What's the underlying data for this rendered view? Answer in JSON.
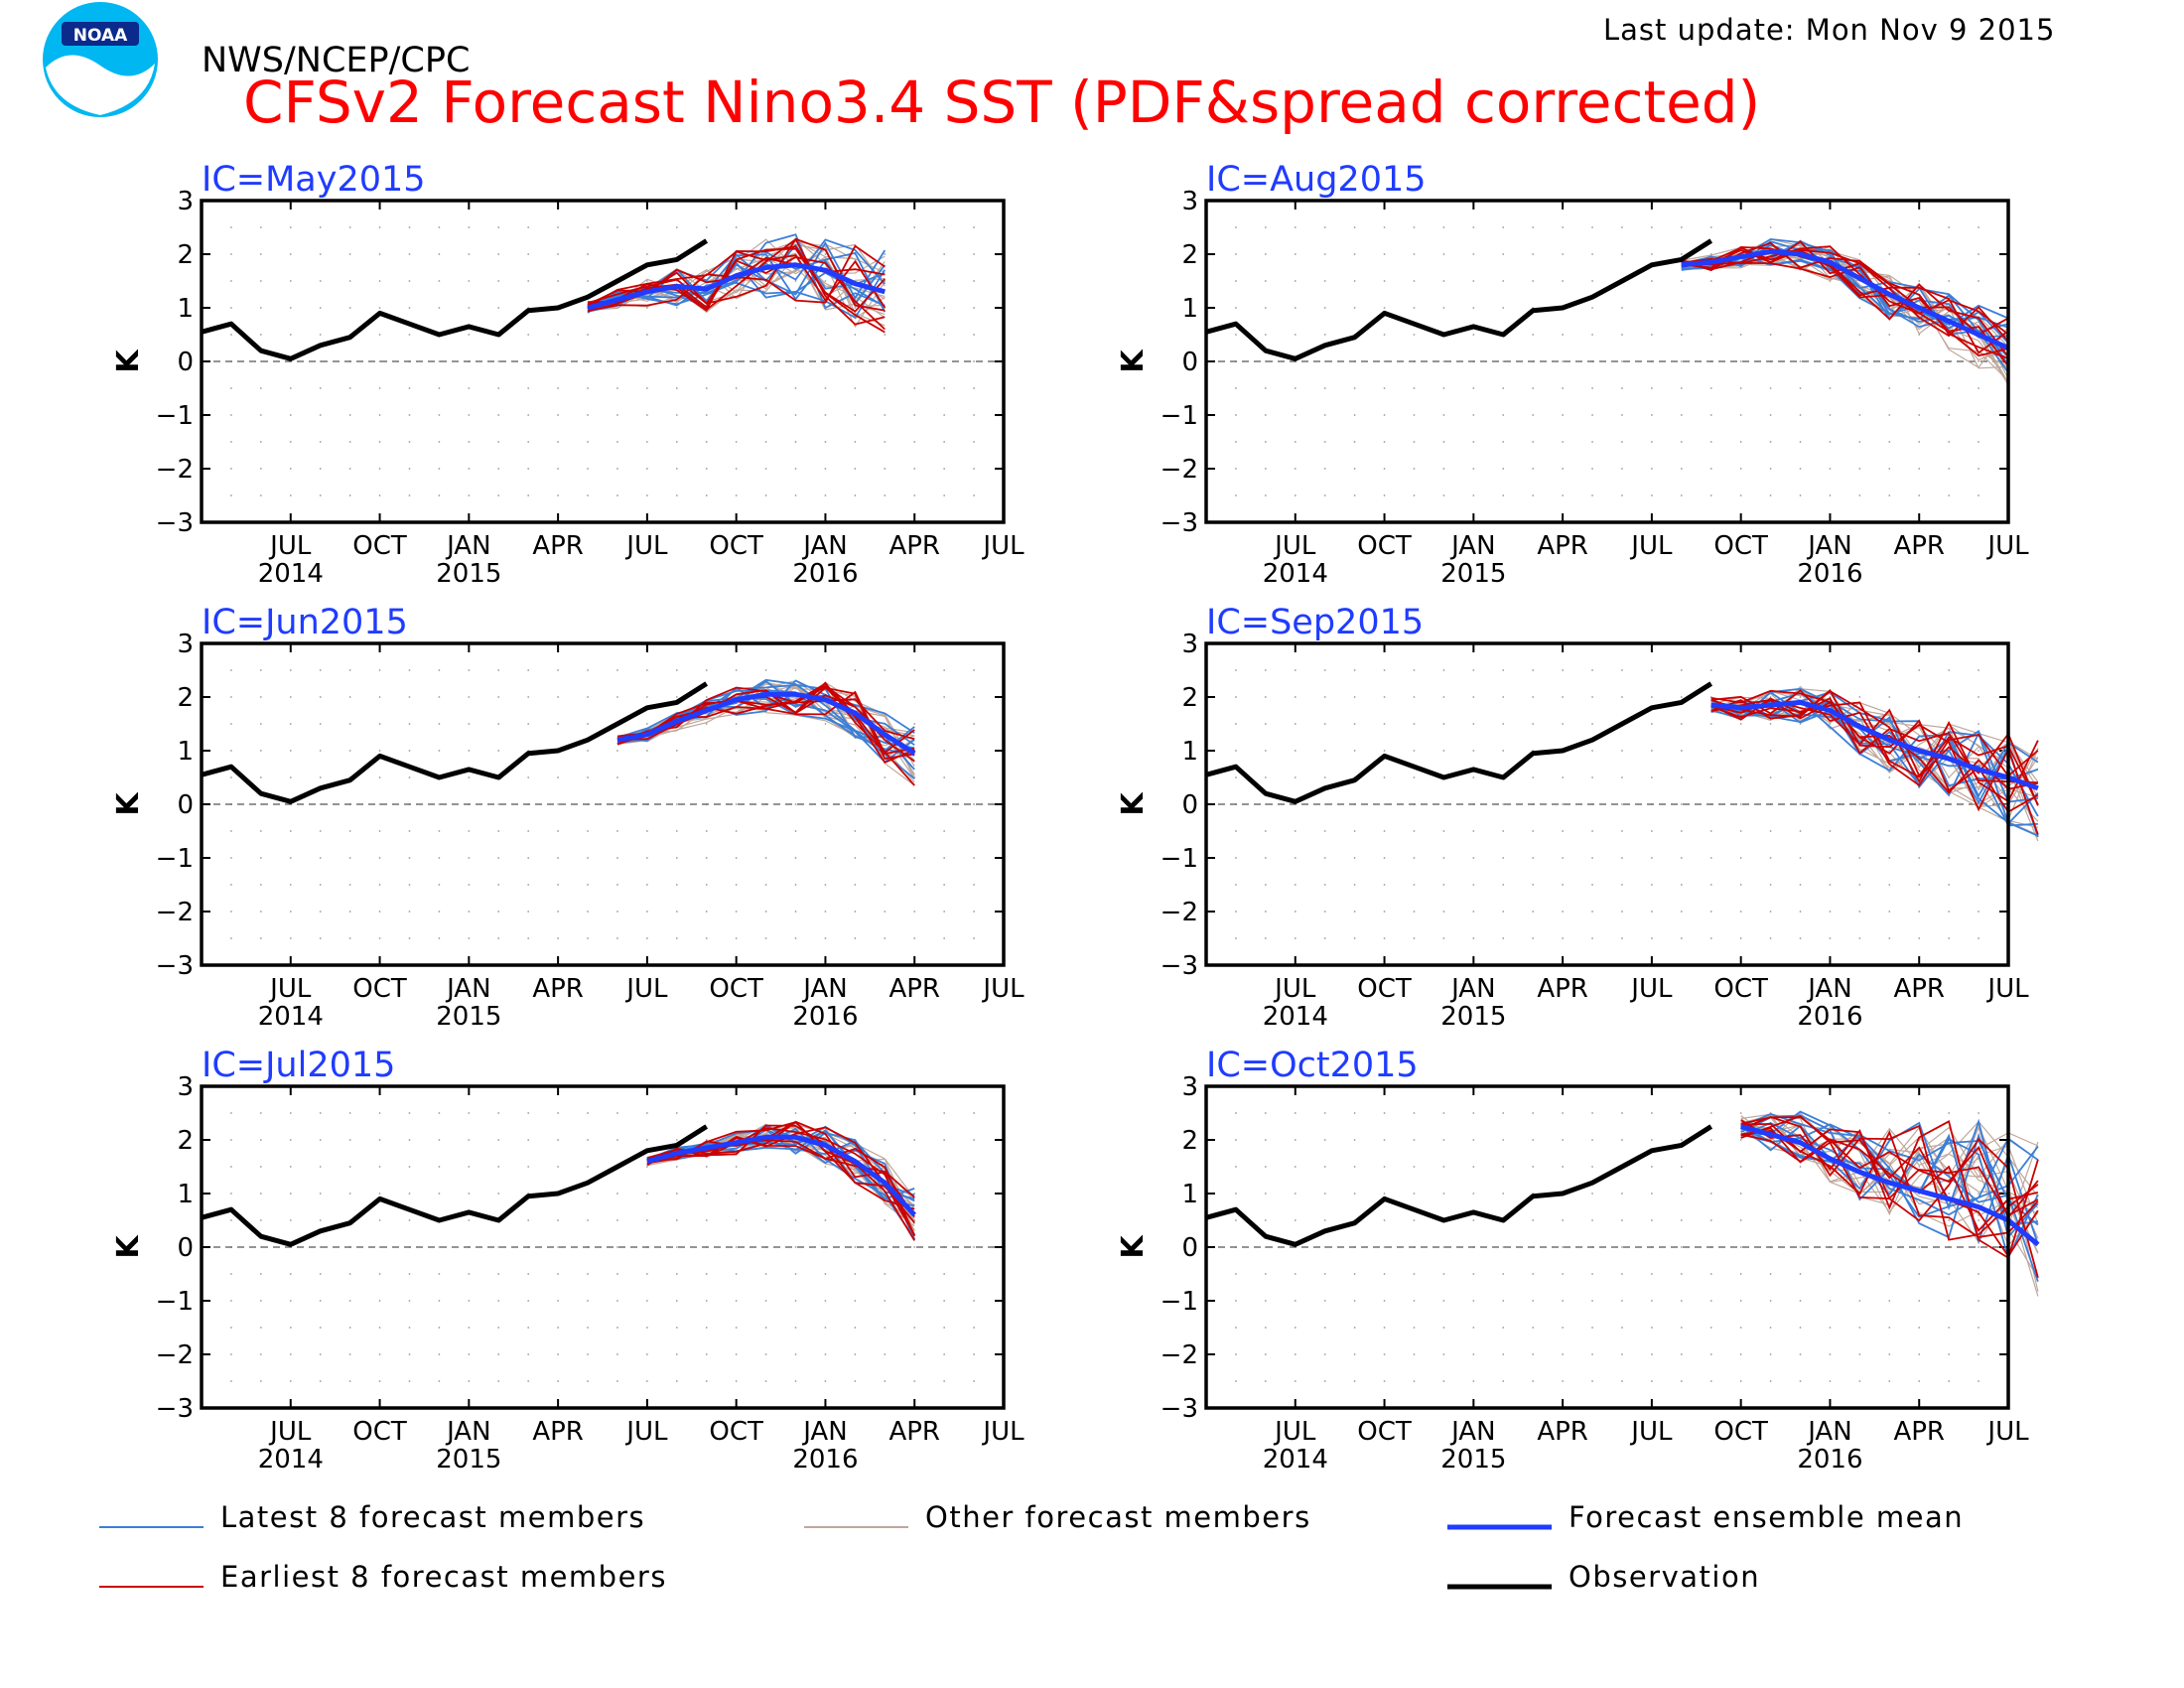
{
  "header": {
    "org": "NWS/NCEP/CPC",
    "title": "CFSv2 Forecast Nino3.4 SST (PDF&spread corrected)",
    "last_update": "Last update: Mon Nov 9 2015",
    "logo_text": "NOAA"
  },
  "colors": {
    "latest": "#3a7fd9",
    "earliest": "#cc0000",
    "other": "#bfa79b",
    "mean": "#1f3cff",
    "obs": "#000000",
    "ic_label": "#1f3cff",
    "title": "#ff0000"
  },
  "legend": [
    {
      "key": "latest",
      "label": "Latest 8 forecast members"
    },
    {
      "key": "other",
      "label": "Other forecast members"
    },
    {
      "key": "mean",
      "label": "Forecast ensemble mean"
    },
    {
      "key": "earliest",
      "label": "Earliest 8 forecast members"
    },
    {
      "key": "obs",
      "label": "Observation"
    }
  ],
  "chart_data": [
    {
      "type": "line",
      "ic": "IC=May2015",
      "ylabel": "K",
      "ylim": [
        -3,
        3
      ],
      "yticks": [
        "3",
        "2",
        "1",
        "0",
        "−1",
        "−2",
        "−3"
      ],
      "xlim": [
        "2014-04",
        "2016-07"
      ],
      "xticks": [
        {
          "m": "2014-07",
          "label": "JUL",
          "year": "2014"
        },
        {
          "m": "2014-10",
          "label": "OCT",
          "year": ""
        },
        {
          "m": "2015-01",
          "label": "JAN",
          "year": "2015"
        },
        {
          "m": "2015-04",
          "label": "APR",
          "year": ""
        },
        {
          "m": "2015-07",
          "label": "JUL",
          "year": ""
        },
        {
          "m": "2015-10",
          "label": "OCT",
          "year": ""
        },
        {
          "m": "2016-01",
          "label": "JAN",
          "year": "2016"
        },
        {
          "m": "2016-04",
          "label": "APR",
          "year": ""
        },
        {
          "m": "2016-07",
          "label": "JUL",
          "year": ""
        }
      ],
      "observation": {
        "start": "2014-04",
        "values": [
          0.55,
          0.7,
          0.2,
          0.05,
          0.3,
          0.45,
          0.9,
          0.7,
          0.5,
          0.65,
          0.5,
          0.95,
          1.0,
          1.2,
          1.5,
          1.8,
          1.9,
          2.25
        ]
      },
      "mean": {
        "start": "2015-05",
        "values": [
          1.0,
          1.15,
          1.3,
          1.4,
          1.35,
          1.6,
          1.75,
          1.8,
          1.7,
          1.45,
          1.3
        ]
      },
      "spread": [
        -0.9,
        0.8
      ]
    },
    {
      "type": "line",
      "ic": "IC=Aug2015",
      "ylabel": "K",
      "ylim": [
        -3,
        3
      ],
      "yticks": [
        "3",
        "2",
        "1",
        "0",
        "−1",
        "−2",
        "−3"
      ],
      "xlim": [
        "2014-04",
        "2016-07"
      ],
      "xticks": [
        {
          "m": "2014-07",
          "label": "JUL",
          "year": "2014"
        },
        {
          "m": "2014-10",
          "label": "OCT",
          "year": ""
        },
        {
          "m": "2015-01",
          "label": "JAN",
          "year": "2015"
        },
        {
          "m": "2015-04",
          "label": "APR",
          "year": ""
        },
        {
          "m": "2015-07",
          "label": "JUL",
          "year": ""
        },
        {
          "m": "2015-10",
          "label": "OCT",
          "year": ""
        },
        {
          "m": "2016-01",
          "label": "JAN",
          "year": "2016"
        },
        {
          "m": "2016-04",
          "label": "APR",
          "year": ""
        },
        {
          "m": "2016-07",
          "label": "JUL",
          "year": ""
        }
      ],
      "observation": {
        "start": "2014-04",
        "values": [
          0.55,
          0.7,
          0.2,
          0.05,
          0.3,
          0.45,
          0.9,
          0.7,
          0.5,
          0.65,
          0.5,
          0.95,
          1.0,
          1.2,
          1.5,
          1.8,
          1.9,
          2.25
        ]
      },
      "mean": {
        "start": "2015-08",
        "values": [
          1.8,
          1.85,
          1.95,
          2.05,
          2.0,
          1.85,
          1.55,
          1.25,
          1.0,
          0.75,
          0.5,
          0.25
        ]
      },
      "spread": [
        -0.7,
        0.6
      ]
    },
    {
      "type": "line",
      "ic": "IC=Jun2015",
      "ylabel": "K",
      "ylim": [
        -3,
        3
      ],
      "yticks": [
        "3",
        "2",
        "1",
        "0",
        "−1",
        "−2",
        "−3"
      ],
      "xlim": [
        "2014-04",
        "2016-07"
      ],
      "xticks": [
        {
          "m": "2014-07",
          "label": "JUL",
          "year": "2014"
        },
        {
          "m": "2014-10",
          "label": "OCT",
          "year": ""
        },
        {
          "m": "2015-01",
          "label": "JAN",
          "year": "2015"
        },
        {
          "m": "2015-04",
          "label": "APR",
          "year": ""
        },
        {
          "m": "2015-07",
          "label": "JUL",
          "year": ""
        },
        {
          "m": "2015-10",
          "label": "OCT",
          "year": ""
        },
        {
          "m": "2016-01",
          "label": "JAN",
          "year": "2016"
        },
        {
          "m": "2016-04",
          "label": "APR",
          "year": ""
        },
        {
          "m": "2016-07",
          "label": "JUL",
          "year": ""
        }
      ],
      "observation": {
        "start": "2014-04",
        "values": [
          0.55,
          0.7,
          0.2,
          0.05,
          0.3,
          0.45,
          0.9,
          0.7,
          0.5,
          0.65,
          0.5,
          0.95,
          1.0,
          1.2,
          1.5,
          1.8,
          1.9,
          2.25
        ]
      },
      "mean": {
        "start": "2015-06",
        "values": [
          1.2,
          1.3,
          1.55,
          1.75,
          1.95,
          2.05,
          2.05,
          1.95,
          1.7,
          1.3,
          0.95
        ]
      },
      "spread": [
        -0.6,
        0.5
      ]
    },
    {
      "type": "line",
      "ic": "IC=Sep2015",
      "ylabel": "K",
      "ylim": [
        -3,
        3
      ],
      "yticks": [
        "3",
        "2",
        "1",
        "0",
        "−1",
        "−2",
        "−3"
      ],
      "xlim": [
        "2014-04",
        "2016-07"
      ],
      "xticks": [
        {
          "m": "2014-07",
          "label": "JUL",
          "year": "2014"
        },
        {
          "m": "2014-10",
          "label": "OCT",
          "year": ""
        },
        {
          "m": "2015-01",
          "label": "JAN",
          "year": "2015"
        },
        {
          "m": "2015-04",
          "label": "APR",
          "year": ""
        },
        {
          "m": "2015-07",
          "label": "JUL",
          "year": ""
        },
        {
          "m": "2015-10",
          "label": "OCT",
          "year": ""
        },
        {
          "m": "2016-01",
          "label": "JAN",
          "year": "2016"
        },
        {
          "m": "2016-04",
          "label": "APR",
          "year": ""
        },
        {
          "m": "2016-07",
          "label": "JUL",
          "year": ""
        }
      ],
      "observation": {
        "start": "2014-04",
        "values": [
          0.55,
          0.7,
          0.2,
          0.05,
          0.3,
          0.45,
          0.9,
          0.7,
          0.5,
          0.65,
          0.5,
          0.95,
          1.0,
          1.2,
          1.5,
          1.8,
          1.9,
          2.25
        ]
      },
      "mean": {
        "start": "2015-09",
        "values": [
          1.85,
          1.8,
          1.85,
          1.9,
          1.75,
          1.45,
          1.2,
          1.0,
          0.85,
          0.65,
          0.5,
          0.3
        ]
      },
      "spread": [
        -1.0,
        0.9
      ]
    },
    {
      "type": "line",
      "ic": "IC=Jul2015",
      "ylabel": "K",
      "ylim": [
        -3,
        3
      ],
      "yticks": [
        "3",
        "2",
        "1",
        "0",
        "−1",
        "−2",
        "−3"
      ],
      "xlim": [
        "2014-04",
        "2016-07"
      ],
      "xticks": [
        {
          "m": "2014-07",
          "label": "JUL",
          "year": "2014"
        },
        {
          "m": "2014-10",
          "label": "OCT",
          "year": ""
        },
        {
          "m": "2015-01",
          "label": "JAN",
          "year": "2015"
        },
        {
          "m": "2015-04",
          "label": "APR",
          "year": ""
        },
        {
          "m": "2015-07",
          "label": "JUL",
          "year": ""
        },
        {
          "m": "2015-10",
          "label": "OCT",
          "year": ""
        },
        {
          "m": "2016-01",
          "label": "JAN",
          "year": "2016"
        },
        {
          "m": "2016-04",
          "label": "APR",
          "year": ""
        },
        {
          "m": "2016-07",
          "label": "JUL",
          "year": ""
        }
      ],
      "observation": {
        "start": "2014-04",
        "values": [
          0.55,
          0.7,
          0.2,
          0.05,
          0.3,
          0.45,
          0.9,
          0.7,
          0.5,
          0.65,
          0.5,
          0.95,
          1.0,
          1.2,
          1.5,
          1.8,
          1.9,
          2.25
        ]
      },
      "mean": {
        "start": "2015-07",
        "values": [
          1.6,
          1.75,
          1.85,
          1.95,
          2.05,
          2.05,
          1.9,
          1.6,
          1.2,
          0.6
        ]
      },
      "spread": [
        -0.5,
        0.5
      ]
    },
    {
      "type": "line",
      "ic": "IC=Oct2015",
      "ylabel": "K",
      "ylim": [
        -3,
        3
      ],
      "yticks": [
        "3",
        "2",
        "1",
        "0",
        "−1",
        "−2",
        "−3"
      ],
      "xlim": [
        "2014-04",
        "2016-07"
      ],
      "xticks": [
        {
          "m": "2014-07",
          "label": "JUL",
          "year": "2014"
        },
        {
          "m": "2014-10",
          "label": "OCT",
          "year": ""
        },
        {
          "m": "2015-01",
          "label": "JAN",
          "year": "2015"
        },
        {
          "m": "2015-04",
          "label": "APR",
          "year": ""
        },
        {
          "m": "2015-07",
          "label": "JUL",
          "year": ""
        },
        {
          "m": "2015-10",
          "label": "OCT",
          "year": ""
        },
        {
          "m": "2016-01",
          "label": "JAN",
          "year": "2016"
        },
        {
          "m": "2016-04",
          "label": "APR",
          "year": ""
        },
        {
          "m": "2016-07",
          "label": "JUL",
          "year": ""
        }
      ],
      "observation": {
        "start": "2014-04",
        "values": [
          0.55,
          0.7,
          0.2,
          0.05,
          0.3,
          0.45,
          0.9,
          0.7,
          0.5,
          0.65,
          0.5,
          0.95,
          1.0,
          1.2,
          1.5,
          1.8,
          1.9,
          2.25
        ]
      },
      "mean": {
        "start": "2015-10",
        "values": [
          2.25,
          2.1,
          1.95,
          1.65,
          1.4,
          1.2,
          1.05,
          0.9,
          0.75,
          0.5,
          0.05
        ]
      },
      "spread": [
        -1.0,
        2.0
      ]
    }
  ]
}
